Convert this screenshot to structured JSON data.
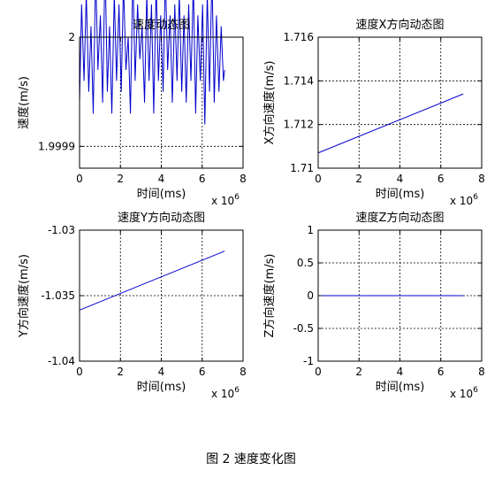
{
  "figure_caption": "图 2  速度变化图",
  "chart_data": [
    {
      "type": "line",
      "title": "速度动态图",
      "xlabel": "时间(ms)",
      "ylabel": "速度(m/s)",
      "x_multiplier": "x 10",
      "x_exponent": "6",
      "xlim": [
        0,
        8
      ],
      "ylim": [
        1.99988,
        2.0
      ],
      "xticks": [
        0,
        2,
        4,
        6,
        8
      ],
      "xtick_labels": [
        "0",
        "2",
        "4",
        "6",
        "8"
      ],
      "yticks": [
        1.9999,
        2.0
      ],
      "ytick_labels": [
        "1.9999",
        "2"
      ],
      "grid": true,
      "line_color": "#0000cc",
      "series": [
        {
          "x": [
            0.0,
            0.1,
            0.22,
            0.33,
            0.45,
            0.56,
            0.67,
            0.79,
            0.9,
            1.02,
            1.13,
            1.25,
            1.36,
            1.47,
            1.58,
            1.7,
            1.81,
            1.93,
            2.04,
            2.15,
            2.27,
            2.38,
            2.49,
            2.61,
            2.72,
            2.84,
            2.95,
            3.06,
            3.18,
            3.29,
            3.4,
            3.52,
            3.63,
            3.75,
            3.86,
            3.97,
            4.09,
            4.2,
            4.31,
            4.43,
            4.54,
            4.66,
            4.77,
            4.88,
            5.0,
            5.11,
            5.22,
            5.34,
            5.45,
            5.57,
            5.68,
            5.79,
            5.91,
            6.02,
            6.13,
            6.25,
            6.36,
            6.48,
            6.59,
            6.7,
            6.82,
            6.93,
            7.04,
            7.1
          ],
          "y": [
            1.99994,
            2.00003,
            1.99996,
            2.00004,
            1.99995,
            2.00001,
            1.99993,
            2.00006,
            1.99997,
            2.00002,
            1.99994,
            2.00007,
            1.99995,
            2.00001,
            1.99993,
            2.00004,
            1.99996,
            2.00003,
            1.99995,
            2.00005,
            1.99997,
            2.0,
            1.99993,
            2.00006,
            1.99996,
            2.00003,
            1.99998,
            2.00001,
            1.99994,
            2.00004,
            1.99996,
            2.00003,
            1.99993,
            2.00005,
            1.99996,
            2.00002,
            1.99995,
            2.00006,
            1.99997,
            2.00002,
            1.99994,
            2.00003,
            1.99996,
            2.00004,
            1.99995,
            2.00002,
            1.99994,
            2.00003,
            1.99996,
            2.00005,
            1.99993,
            2.00002,
            1.99996,
            2.00003,
            1.99992,
            2.00004,
            1.99995,
            2.00006,
            1.99994,
            2.00002,
            1.99995,
            2.00001,
            1.99996,
            1.99997
          ]
        }
      ]
    },
    {
      "type": "line",
      "title": "速度X方向动态图",
      "xlabel": "时间(ms)",
      "ylabel": "X方向速度(m/s)",
      "x_multiplier": "x 10",
      "x_exponent": "6",
      "xlim": [
        0,
        8
      ],
      "ylim": [
        1.71,
        1.716
      ],
      "xticks": [
        0,
        2,
        4,
        6,
        8
      ],
      "xtick_labels": [
        "0",
        "2",
        "4",
        "6",
        "8"
      ],
      "yticks": [
        1.71,
        1.712,
        1.714,
        1.716
      ],
      "ytick_labels": [
        "1.71",
        "1.712",
        "1.714",
        "1.716"
      ],
      "grid": true,
      "line_color": "#0000cc",
      "series": [
        {
          "x": [
            0.0,
            7.1
          ],
          "y": [
            1.7107,
            1.7134
          ]
        }
      ]
    },
    {
      "type": "line",
      "title": "速度Y方向动态图",
      "xlabel": "时间(ms)",
      "ylabel": "Y方向速度(m/s)",
      "x_multiplier": "x 10",
      "x_exponent": "6",
      "xlim": [
        0,
        8
      ],
      "ylim": [
        -1.04,
        -1.03
      ],
      "xticks": [
        0,
        2,
        4,
        6,
        8
      ],
      "xtick_labels": [
        "0",
        "2",
        "4",
        "6",
        "8"
      ],
      "yticks": [
        -1.04,
        -1.035,
        -1.03
      ],
      "ytick_labels": [
        "-1.04",
        "-1.035",
        "-1.03"
      ],
      "grid": true,
      "line_color": "#0000cc",
      "series": [
        {
          "x": [
            0.0,
            7.1
          ],
          "y": [
            -1.0361,
            -1.0316
          ]
        }
      ]
    },
    {
      "type": "line",
      "title": "速度Z方向动态图",
      "xlabel": "时间(ms)",
      "ylabel": "Z方向速度(m/s)",
      "x_multiplier": "x 10",
      "x_exponent": "6",
      "xlim": [
        0,
        8
      ],
      "ylim": [
        -1,
        1
      ],
      "xticks": [
        0,
        2,
        4,
        6,
        8
      ],
      "xtick_labels": [
        "0",
        "2",
        "4",
        "6",
        "8"
      ],
      "yticks": [
        -1,
        -0.5,
        0,
        0.5,
        1
      ],
      "ytick_labels": [
        "-1",
        "-0.5",
        "0",
        "0.5",
        "1"
      ],
      "grid": true,
      "line_color": "#0000cc",
      "series": [
        {
          "x": [
            0.0,
            7.1
          ],
          "y": [
            0,
            0
          ]
        }
      ]
    }
  ]
}
